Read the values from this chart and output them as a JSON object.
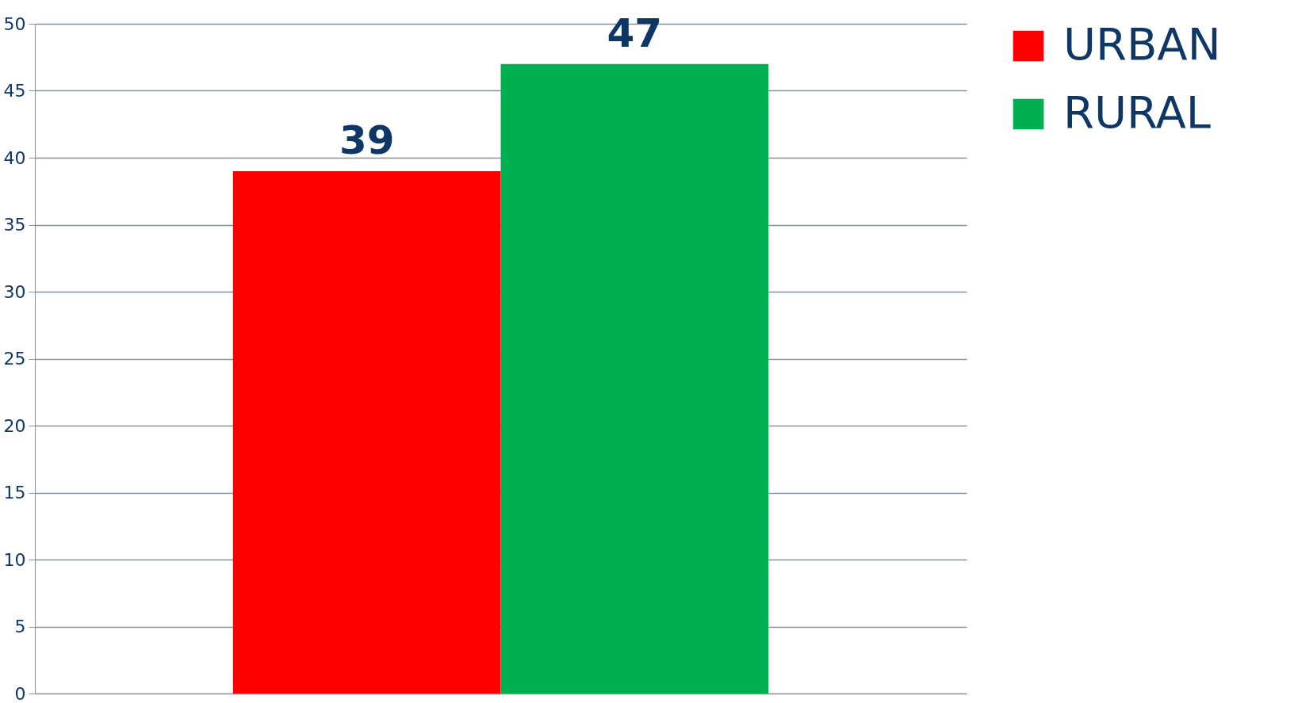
{
  "chart_data": {
    "type": "bar",
    "categories": [
      null
    ],
    "series": [
      {
        "name": "URBAN",
        "color": "#ff0000",
        "values": [
          39
        ]
      },
      {
        "name": "RURAL",
        "color": "#00b050",
        "values": [
          47
        ]
      }
    ],
    "ylim": [
      0,
      50
    ],
    "yticks": [
      0,
      5,
      10,
      15,
      20,
      25,
      30,
      35,
      40,
      45,
      50
    ],
    "grid": "y",
    "legend": "right",
    "data_labels": true
  }
}
